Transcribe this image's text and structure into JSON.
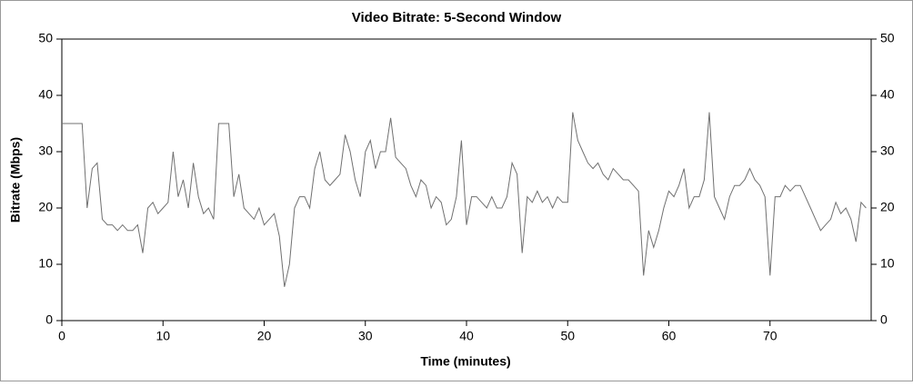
{
  "chart_data": {
    "type": "line",
    "title": "Video Bitrate: 5-Second Window",
    "xlabel": "Time (minutes)",
    "ylabel": "Bitrate (Mbps)",
    "xlim": [
      0,
      80
    ],
    "ylim": [
      0,
      50
    ],
    "y2lim": [
      0,
      50
    ],
    "xticks": [
      0,
      10,
      20,
      30,
      40,
      50,
      60,
      70
    ],
    "yticks": [
      0,
      10,
      20,
      30,
      40,
      50
    ],
    "y2ticks": [
      0,
      10,
      20,
      30,
      40,
      50
    ],
    "grid": false,
    "x": [
      0,
      0.5,
      1,
      1.5,
      2,
      2.5,
      3,
      3.5,
      4,
      4.5,
      5,
      5.5,
      6,
      6.5,
      7,
      7.5,
      8,
      8.5,
      9,
      9.5,
      10,
      10.5,
      11,
      11.5,
      12,
      12.5,
      13,
      13.5,
      14,
      14.5,
      15,
      15.5,
      16,
      16.5,
      17,
      17.5,
      18,
      18.5,
      19,
      19.5,
      20,
      20.5,
      21,
      21.5,
      22,
      22.5,
      23,
      23.5,
      24,
      24.5,
      25,
      25.5,
      26,
      26.5,
      27,
      27.5,
      28,
      28.5,
      29,
      29.5,
      30,
      30.5,
      31,
      31.5,
      32,
      32.5,
      33,
      33.5,
      34,
      34.5,
      35,
      35.5,
      36,
      36.5,
      37,
      37.5,
      38,
      38.5,
      39,
      39.5,
      40,
      40.5,
      41,
      41.5,
      42,
      42.5,
      43,
      43.5,
      44,
      44.5,
      45,
      45.5,
      46,
      46.5,
      47,
      47.5,
      48,
      48.5,
      49,
      49.5,
      50,
      50.5,
      51,
      51.5,
      52,
      52.5,
      53,
      53.5,
      54,
      54.5,
      55,
      55.5,
      56,
      56.5,
      57,
      57.5,
      58,
      58.5,
      59,
      59.5,
      60,
      60.5,
      61,
      61.5,
      62,
      62.5,
      63,
      63.5,
      64,
      64.5,
      65,
      65.5,
      66,
      66.5,
      67,
      67.5,
      68,
      68.5,
      69,
      69.5,
      70,
      70.5,
      71,
      71.5,
      72,
      72.5,
      73,
      73.5,
      74,
      74.5,
      75,
      75.5,
      76,
      76.5,
      77,
      77.5,
      78,
      78.5,
      79,
      79.5
    ],
    "series": [
      {
        "color": "#707070",
        "values": [
          35,
          35,
          35,
          35,
          35,
          20,
          27,
          28,
          18,
          17,
          17,
          16,
          17,
          16,
          16,
          17,
          12,
          20,
          21,
          19,
          20,
          21,
          30,
          22,
          25,
          20,
          28,
          22,
          19,
          20,
          18,
          35,
          35,
          35,
          22,
          26,
          20,
          19,
          18,
          20,
          17,
          18,
          19,
          15,
          6,
          10,
          20,
          22,
          22,
          20,
          27,
          30,
          25,
          24,
          25,
          26,
          33,
          30,
          25,
          22,
          30,
          32,
          27,
          30,
          30,
          36,
          29,
          28,
          27,
          24,
          22,
          25,
          24,
          20,
          22,
          21,
          17,
          18,
          22,
          32,
          17,
          22,
          22,
          21,
          20,
          22,
          20,
          20,
          22,
          28,
          26,
          12,
          22,
          21,
          23,
          21,
          22,
          20,
          22,
          21,
          21,
          37,
          32,
          30,
          28,
          27,
          28,
          26,
          25,
          27,
          26,
          25,
          25,
          24,
          23,
          8,
          16,
          13,
          16,
          20,
          23,
          22,
          24,
          27,
          20,
          22,
          22,
          25,
          37,
          22,
          20,
          18,
          22,
          24,
          24,
          25,
          27,
          25,
          24,
          22,
          8,
          22,
          22,
          24,
          23,
          24,
          24,
          22,
          20,
          18,
          16,
          17,
          18,
          21,
          19,
          20,
          18,
          14,
          21,
          20
        ]
      }
    ]
  }
}
